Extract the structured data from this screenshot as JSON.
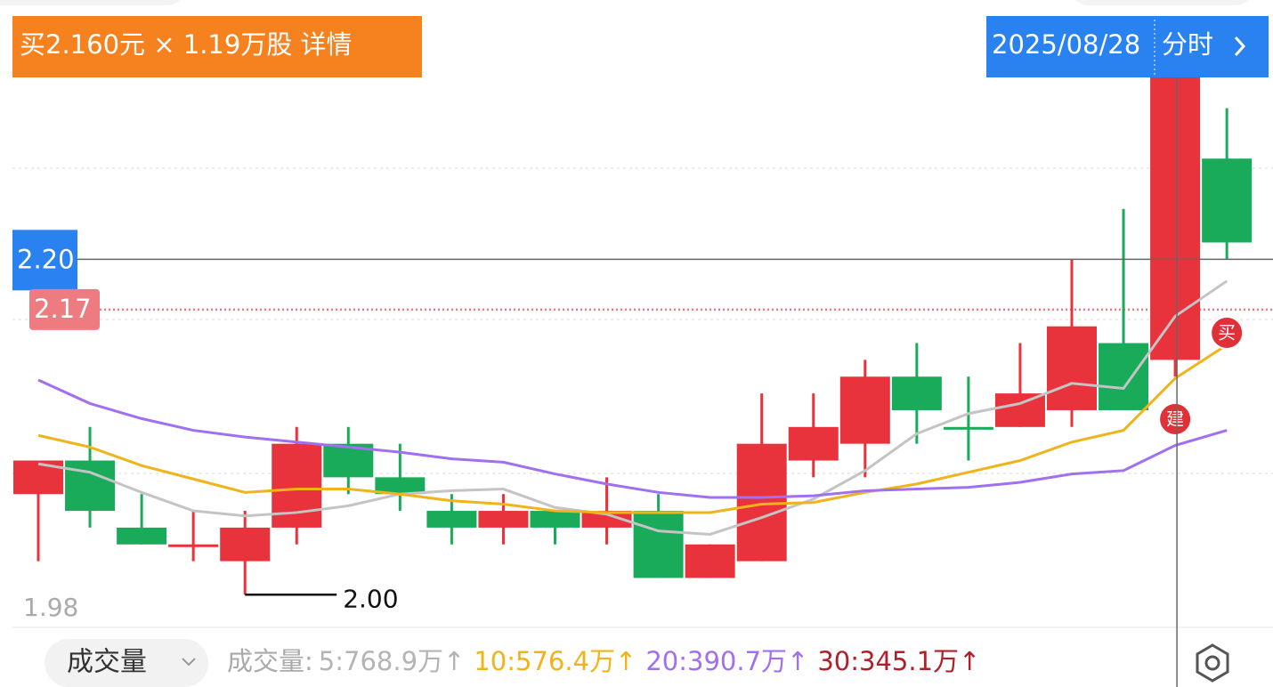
{
  "chart_data": {
    "type": "candlestick",
    "trade_banner": "买2.160元 × 1.19万股 详情",
    "ylim": [
      1.98,
      2.345
    ],
    "yticks": [
      1.98
    ],
    "up_color": "#e8333c",
    "down_color": "#1aab5a",
    "candles": [
      {
        "open": 2.06,
        "high": 2.08,
        "low": 2.02,
        "close": 2.08
      },
      {
        "open": 2.08,
        "high": 2.1,
        "low": 2.04,
        "close": 2.05
      },
      {
        "open": 2.04,
        "high": 2.06,
        "low": 2.03,
        "close": 2.03
      },
      {
        "open": 2.03,
        "high": 2.05,
        "low": 2.02,
        "close": 2.03
      },
      {
        "open": 2.02,
        "high": 2.05,
        "low": 2.0,
        "close": 2.04
      },
      {
        "open": 2.04,
        "high": 2.1,
        "low": 2.03,
        "close": 2.09
      },
      {
        "open": 2.09,
        "high": 2.1,
        "low": 2.06,
        "close": 2.07
      },
      {
        "open": 2.07,
        "high": 2.09,
        "low": 2.05,
        "close": 2.06
      },
      {
        "open": 2.05,
        "high": 2.06,
        "low": 2.03,
        "close": 2.04
      },
      {
        "open": 2.04,
        "high": 2.06,
        "low": 2.03,
        "close": 2.05
      },
      {
        "open": 2.05,
        "high": 2.05,
        "low": 2.03,
        "close": 2.04
      },
      {
        "open": 2.04,
        "high": 2.07,
        "low": 2.03,
        "close": 2.05
      },
      {
        "open": 2.05,
        "high": 2.06,
        "low": 2.01,
        "close": 2.01
      },
      {
        "open": 2.01,
        "high": 2.03,
        "low": 2.01,
        "close": 2.03
      },
      {
        "open": 2.02,
        "high": 2.12,
        "low": 2.02,
        "close": 2.09
      },
      {
        "open": 2.08,
        "high": 2.12,
        "low": 2.07,
        "close": 2.1
      },
      {
        "open": 2.09,
        "high": 2.14,
        "low": 2.07,
        "close": 2.13
      },
      {
        "open": 2.13,
        "high": 2.15,
        "low": 2.09,
        "close": 2.11
      },
      {
        "open": 2.1,
        "high": 2.13,
        "low": 2.08,
        "close": 2.1
      },
      {
        "open": 2.1,
        "high": 2.15,
        "low": 2.1,
        "close": 2.12
      },
      {
        "open": 2.11,
        "high": 2.2,
        "low": 2.1,
        "close": 2.16
      },
      {
        "open": 2.15,
        "high": 2.23,
        "low": 2.11,
        "close": 2.11
      },
      {
        "open": 2.14,
        "high": 2.32,
        "low": 2.13,
        "close": 2.32,
        "marker": "建"
      },
      {
        "open": 2.26,
        "high": 2.29,
        "low": 2.2,
        "close": 2.21,
        "marker": "买"
      }
    ],
    "lines": [
      {
        "color": "#c4c4c4",
        "values": [
          2.078,
          2.073,
          2.061,
          2.05,
          2.047,
          2.049,
          2.053,
          2.06,
          2.062,
          2.063,
          2.052,
          2.048,
          2.038,
          2.036,
          2.046,
          2.057,
          2.074,
          2.096,
          2.108,
          2.114,
          2.126,
          2.123,
          2.166,
          2.187
        ]
      },
      {
        "color": "#f0b41a",
        "values": [
          2.095,
          2.088,
          2.077,
          2.069,
          2.061,
          2.063,
          2.063,
          2.06,
          2.056,
          2.054,
          2.05,
          2.049,
          2.049,
          2.049,
          2.054,
          2.055,
          2.061,
          2.066,
          2.073,
          2.08,
          2.091,
          2.098,
          2.129,
          2.149
        ]
      },
      {
        "color": "#a070f0",
        "values": [
          2.128,
          2.114,
          2.105,
          2.098,
          2.094,
          2.091,
          2.088,
          2.085,
          2.081,
          2.079,
          2.072,
          2.066,
          2.061,
          2.058,
          2.058,
          2.059,
          2.062,
          2.063,
          2.064,
          2.067,
          2.072,
          2.074,
          2.089,
          2.098
        ]
      }
    ],
    "crosshair": {
      "date": "2025/08/28",
      "link": "分时",
      "price": {
        "value": 2.2,
        "label": "2.20"
      }
    },
    "last_price": {
      "value": 2.17,
      "label": "2.17"
    },
    "low_marker": {
      "value": 2.0,
      "label": "2.00"
    },
    "volume_bar": {
      "selector": "成交量",
      "legend_label": "成交量:",
      "legend": [
        {
          "text": "5:768.9万↑",
          "color": "#b4b4b4"
        },
        {
          "text": "10:576.4万↑",
          "color": "#f0b41a"
        },
        {
          "text": "20:390.7万↑",
          "color": "#a070f0"
        },
        {
          "text": "30:345.1万↑",
          "color": "#b0202a"
        }
      ]
    }
  }
}
